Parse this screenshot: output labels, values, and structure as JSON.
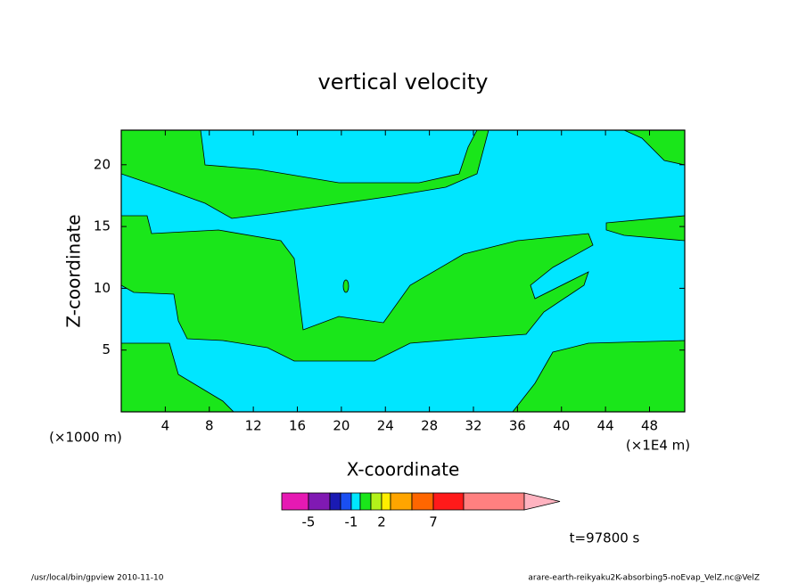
{
  "chart_data": {
    "type": "contour",
    "title": "vertical velocity",
    "x_label": "X-coordinate",
    "y_label": "Z-coordinate",
    "x_unit_left": "(×1000 m)",
    "x_unit_right": "(×1E4 m)",
    "xlim": [
      0,
      51.2
    ],
    "ylim": [
      0,
      22.8
    ],
    "xticks": [
      4,
      8,
      12,
      16,
      20,
      24,
      28,
      32,
      36,
      40,
      44,
      48
    ],
    "yticks": [
      5,
      10,
      15,
      20
    ],
    "colorbar": {
      "colors": [
        "#e619b3",
        "#8019b3",
        "#1a1ab3",
        "#1a4ff2",
        "#00e6ff",
        "#1ae61a",
        "#b3f21a",
        "#ffee00",
        "#ffa500",
        "#ff6600",
        "#ff1a1a",
        "#ff8080",
        "#ffb3c0"
      ],
      "levels": [
        -5,
        null,
        null,
        -1,
        null,
        null,
        2,
        null,
        null,
        7,
        null
      ]
    },
    "time_label": "t=97800 s",
    "footer_left": "/usr/local/bin/gpview  2010-11-10",
    "footer_right": "arare-earth-reikyaku2K-absorbing5-noEvap_VelZ.nc@VelZ"
  }
}
